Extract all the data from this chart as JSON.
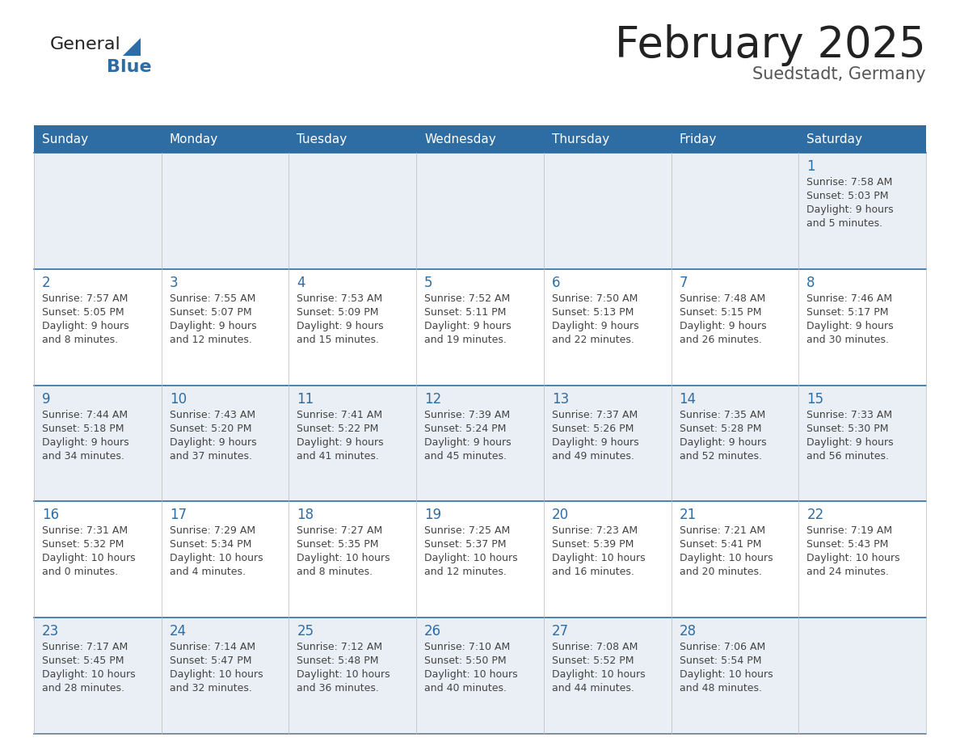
{
  "title": "February 2025",
  "subtitle": "Suedstadt, Germany",
  "days_of_week": [
    "Sunday",
    "Monday",
    "Tuesday",
    "Wednesday",
    "Thursday",
    "Friday",
    "Saturday"
  ],
  "header_bg": "#2E6DA4",
  "header_text": "#FFFFFF",
  "cell_bg_odd": "#EAEFF5",
  "cell_bg_even": "#FFFFFF",
  "border_color": "#2E6DA4",
  "day_number_color": "#2E6DA4",
  "info_text_color": "#444444",
  "calendar": [
    [
      null,
      null,
      null,
      null,
      null,
      null,
      {
        "day": 1,
        "sunrise": "7:58 AM",
        "sunset": "5:03 PM",
        "daylight": "9 hours and 5 minutes"
      }
    ],
    [
      {
        "day": 2,
        "sunrise": "7:57 AM",
        "sunset": "5:05 PM",
        "daylight": "9 hours and 8 minutes"
      },
      {
        "day": 3,
        "sunrise": "7:55 AM",
        "sunset": "5:07 PM",
        "daylight": "9 hours and 12 minutes"
      },
      {
        "day": 4,
        "sunrise": "7:53 AM",
        "sunset": "5:09 PM",
        "daylight": "9 hours and 15 minutes"
      },
      {
        "day": 5,
        "sunrise": "7:52 AM",
        "sunset": "5:11 PM",
        "daylight": "9 hours and 19 minutes"
      },
      {
        "day": 6,
        "sunrise": "7:50 AM",
        "sunset": "5:13 PM",
        "daylight": "9 hours and 22 minutes"
      },
      {
        "day": 7,
        "sunrise": "7:48 AM",
        "sunset": "5:15 PM",
        "daylight": "9 hours and 26 minutes"
      },
      {
        "day": 8,
        "sunrise": "7:46 AM",
        "sunset": "5:17 PM",
        "daylight": "9 hours and 30 minutes"
      }
    ],
    [
      {
        "day": 9,
        "sunrise": "7:44 AM",
        "sunset": "5:18 PM",
        "daylight": "9 hours and 34 minutes"
      },
      {
        "day": 10,
        "sunrise": "7:43 AM",
        "sunset": "5:20 PM",
        "daylight": "9 hours and 37 minutes"
      },
      {
        "day": 11,
        "sunrise": "7:41 AM",
        "sunset": "5:22 PM",
        "daylight": "9 hours and 41 minutes"
      },
      {
        "day": 12,
        "sunrise": "7:39 AM",
        "sunset": "5:24 PM",
        "daylight": "9 hours and 45 minutes"
      },
      {
        "day": 13,
        "sunrise": "7:37 AM",
        "sunset": "5:26 PM",
        "daylight": "9 hours and 49 minutes"
      },
      {
        "day": 14,
        "sunrise": "7:35 AM",
        "sunset": "5:28 PM",
        "daylight": "9 hours and 52 minutes"
      },
      {
        "day": 15,
        "sunrise": "7:33 AM",
        "sunset": "5:30 PM",
        "daylight": "9 hours and 56 minutes"
      }
    ],
    [
      {
        "day": 16,
        "sunrise": "7:31 AM",
        "sunset": "5:32 PM",
        "daylight": "10 hours and 0 minutes"
      },
      {
        "day": 17,
        "sunrise": "7:29 AM",
        "sunset": "5:34 PM",
        "daylight": "10 hours and 4 minutes"
      },
      {
        "day": 18,
        "sunrise": "7:27 AM",
        "sunset": "5:35 PM",
        "daylight": "10 hours and 8 minutes"
      },
      {
        "day": 19,
        "sunrise": "7:25 AM",
        "sunset": "5:37 PM",
        "daylight": "10 hours and 12 minutes"
      },
      {
        "day": 20,
        "sunrise": "7:23 AM",
        "sunset": "5:39 PM",
        "daylight": "10 hours and 16 minutes"
      },
      {
        "day": 21,
        "sunrise": "7:21 AM",
        "sunset": "5:41 PM",
        "daylight": "10 hours and 20 minutes"
      },
      {
        "day": 22,
        "sunrise": "7:19 AM",
        "sunset": "5:43 PM",
        "daylight": "10 hours and 24 minutes"
      }
    ],
    [
      {
        "day": 23,
        "sunrise": "7:17 AM",
        "sunset": "5:45 PM",
        "daylight": "10 hours and 28 minutes"
      },
      {
        "day": 24,
        "sunrise": "7:14 AM",
        "sunset": "5:47 PM",
        "daylight": "10 hours and 32 minutes"
      },
      {
        "day": 25,
        "sunrise": "7:12 AM",
        "sunset": "5:48 PM",
        "daylight": "10 hours and 36 minutes"
      },
      {
        "day": 26,
        "sunrise": "7:10 AM",
        "sunset": "5:50 PM",
        "daylight": "10 hours and 40 minutes"
      },
      {
        "day": 27,
        "sunrise": "7:08 AM",
        "sunset": "5:52 PM",
        "daylight": "10 hours and 44 minutes"
      },
      {
        "day": 28,
        "sunrise": "7:06 AM",
        "sunset": "5:54 PM",
        "daylight": "10 hours and 48 minutes"
      },
      null
    ]
  ],
  "logo_text1": "General",
  "logo_text2": "Blue",
  "logo_color1": "#222222",
  "logo_color2": "#2E6DA4",
  "title_color": "#222222",
  "subtitle_color": "#555555",
  "fig_width": 11.88,
  "fig_height": 9.18,
  "dpi": 100
}
